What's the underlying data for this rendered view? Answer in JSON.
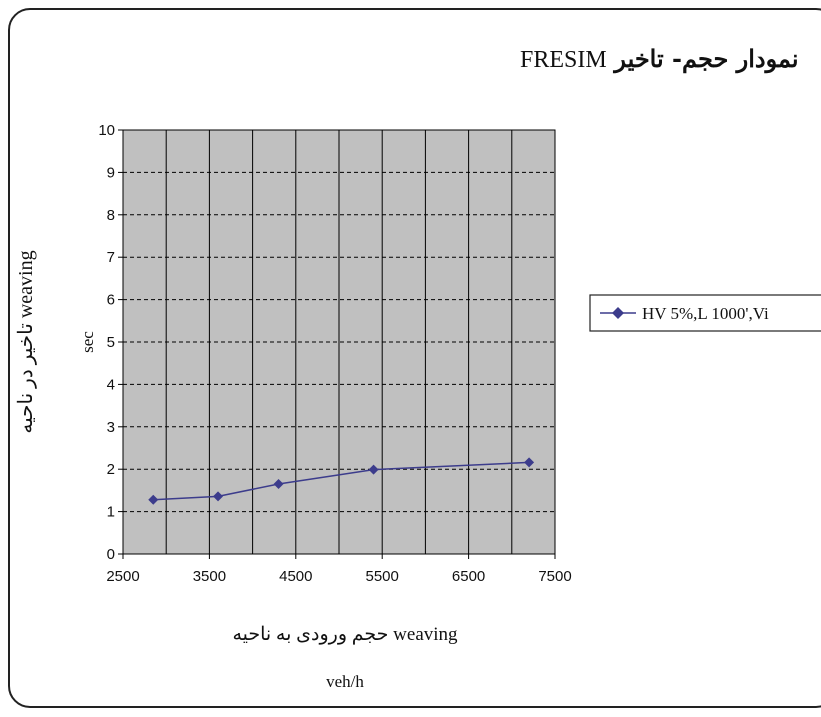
{
  "title": {
    "rtl_text": "نمودار حجم- تاخیر",
    "latin_text": "FRESIM"
  },
  "chart_data": {
    "type": "line",
    "title": "نمودار حجم- تاخیر FRESIM",
    "xlabel": "حجم ورودی به ناحیه weaving",
    "xunit": "veh/h",
    "ylabel": "تاخیر در ناحیه weaving",
    "yunit": "sec",
    "xlim": [
      2500,
      7500
    ],
    "ylim": [
      0,
      10
    ],
    "xticks": [
      "2500",
      "3500",
      "4500",
      "5500",
      "6500",
      "7500"
    ],
    "yticks": [
      "0",
      "1",
      "2",
      "3",
      "4",
      "5",
      "6",
      "7",
      "8",
      "9",
      "10"
    ],
    "x_minor_gridlines": [
      3000,
      4000,
      5000,
      6000,
      7000
    ],
    "grid": true,
    "plot_background": "#c0c0c0",
    "legend_position": "right",
    "series": [
      {
        "name": "HV 5%,L 1000',Vi",
        "color": "#3c3c8c",
        "marker": "diamond",
        "x": [
          2850,
          3600,
          4300,
          5400,
          7200
        ],
        "y": [
          1.28,
          1.36,
          1.65,
          1.99,
          2.16
        ]
      }
    ]
  }
}
